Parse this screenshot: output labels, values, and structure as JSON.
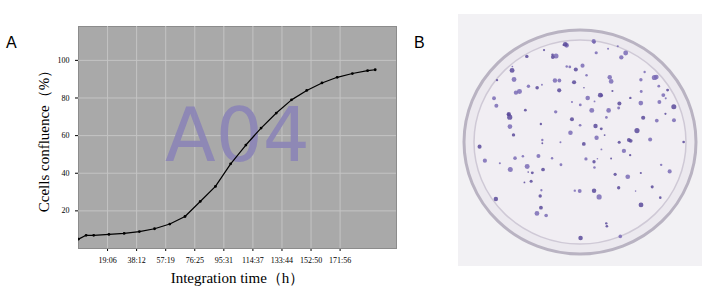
{
  "chart_data": {
    "type": "line",
    "panel_label": "A",
    "annotation": "A04",
    "x_label": "Integration time（h）",
    "y_label": "Ccells confluence（%）",
    "x": [
      0,
      5,
      10,
      20,
      30,
      40,
      50,
      60,
      70,
      80,
      90,
      100,
      110,
      120,
      130,
      140,
      150,
      160,
      170,
      180,
      190,
      195
    ],
    "values": [
      5,
      7,
      7,
      7.5,
      8,
      9,
      10.5,
      13,
      17,
      25,
      33,
      45,
      55,
      64,
      72,
      79,
      84,
      88,
      91,
      93,
      94.5,
      95
    ],
    "color": "#000000",
    "marker": "dot",
    "xlim": [
      0,
      209
    ],
    "ylim": [
      0,
      118
    ],
    "xticks": [
      {
        "value": 19.1,
        "label": "19:06"
      },
      {
        "value": 38.2,
        "label": "38:12"
      },
      {
        "value": 57.32,
        "label": "57:19"
      },
      {
        "value": 76.42,
        "label": "76:25"
      },
      {
        "value": 95.52,
        "label": "95:31"
      },
      {
        "value": 114.62,
        "label": "114:37"
      },
      {
        "value": 133.73,
        "label": "133:44"
      },
      {
        "value": 152.83,
        "label": "152:50"
      },
      {
        "value": 171.93,
        "label": "171:56"
      }
    ],
    "yticks": [
      20,
      40,
      60,
      80,
      100
    ],
    "grid": true
  },
  "photo": {
    "panel_label": "B"
  }
}
